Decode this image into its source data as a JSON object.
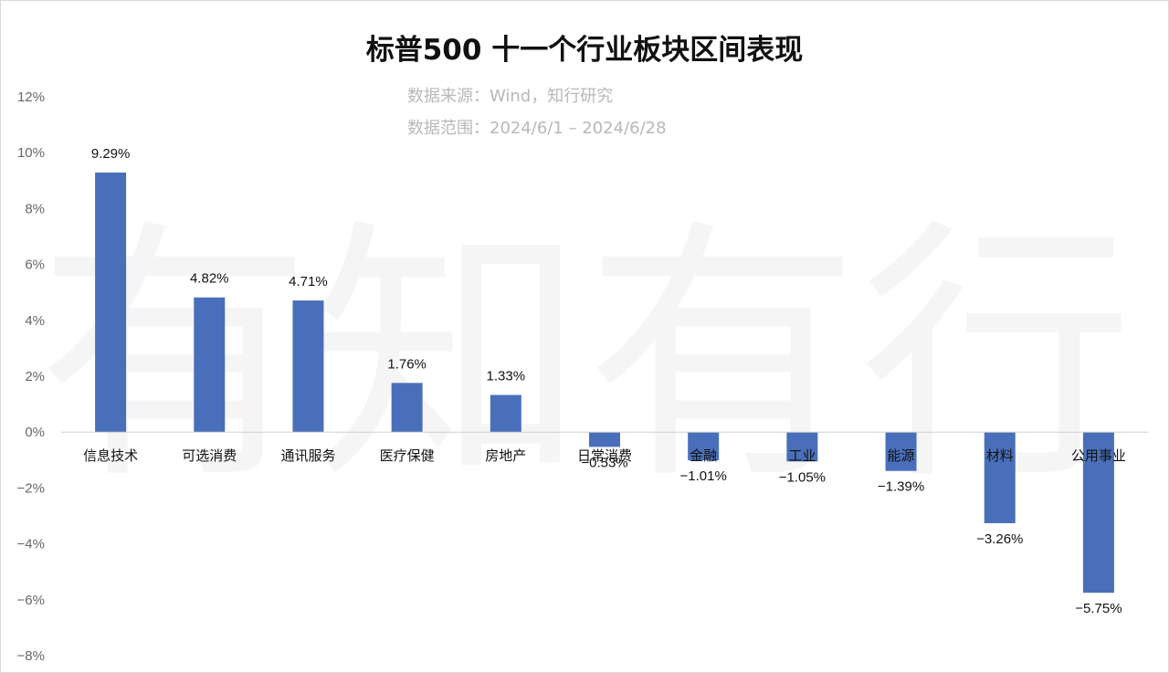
{
  "watermark": [
    "有",
    "知",
    "有",
    "行"
  ],
  "chart_data": {
    "type": "bar",
    "title": "标普500 十一个行业板块区间表现",
    "subtitle": [
      "数据来源：Wind，知行研究",
      "数据范围：2024/6/1 – 2024/6/28"
    ],
    "categories": [
      "信息技术",
      "可选消费",
      "通讯服务",
      "医疗保健",
      "房地产",
      "日常消费",
      "金融",
      "工业",
      "能源",
      "材料",
      "公用事业"
    ],
    "values": [
      9.29,
      4.82,
      4.71,
      1.76,
      1.33,
      -0.53,
      -1.01,
      -1.05,
      -1.39,
      -3.26,
      -5.75
    ],
    "data_labels": [
      "9.29%",
      "4.82%",
      "4.71%",
      "1.76%",
      "1.33%",
      "−0.53%",
      "−1.01%",
      "−1.05%",
      "−1.39%",
      "−3.26%",
      "−5.75%"
    ],
    "ylim": [
      -8,
      12
    ],
    "yticks": [
      12,
      10,
      8,
      6,
      4,
      2,
      0,
      -2,
      -4,
      -6,
      -8
    ],
    "ytick_labels": [
      "12%",
      "10%",
      "8%",
      "6%",
      "4%",
      "2%",
      "0%",
      "−2%",
      "−4%",
      "−6%",
      "−8%"
    ],
    "xlabel": "",
    "ylabel": "",
    "grid": false,
    "legend": "none",
    "bar_color": "#4A6FBA"
  }
}
